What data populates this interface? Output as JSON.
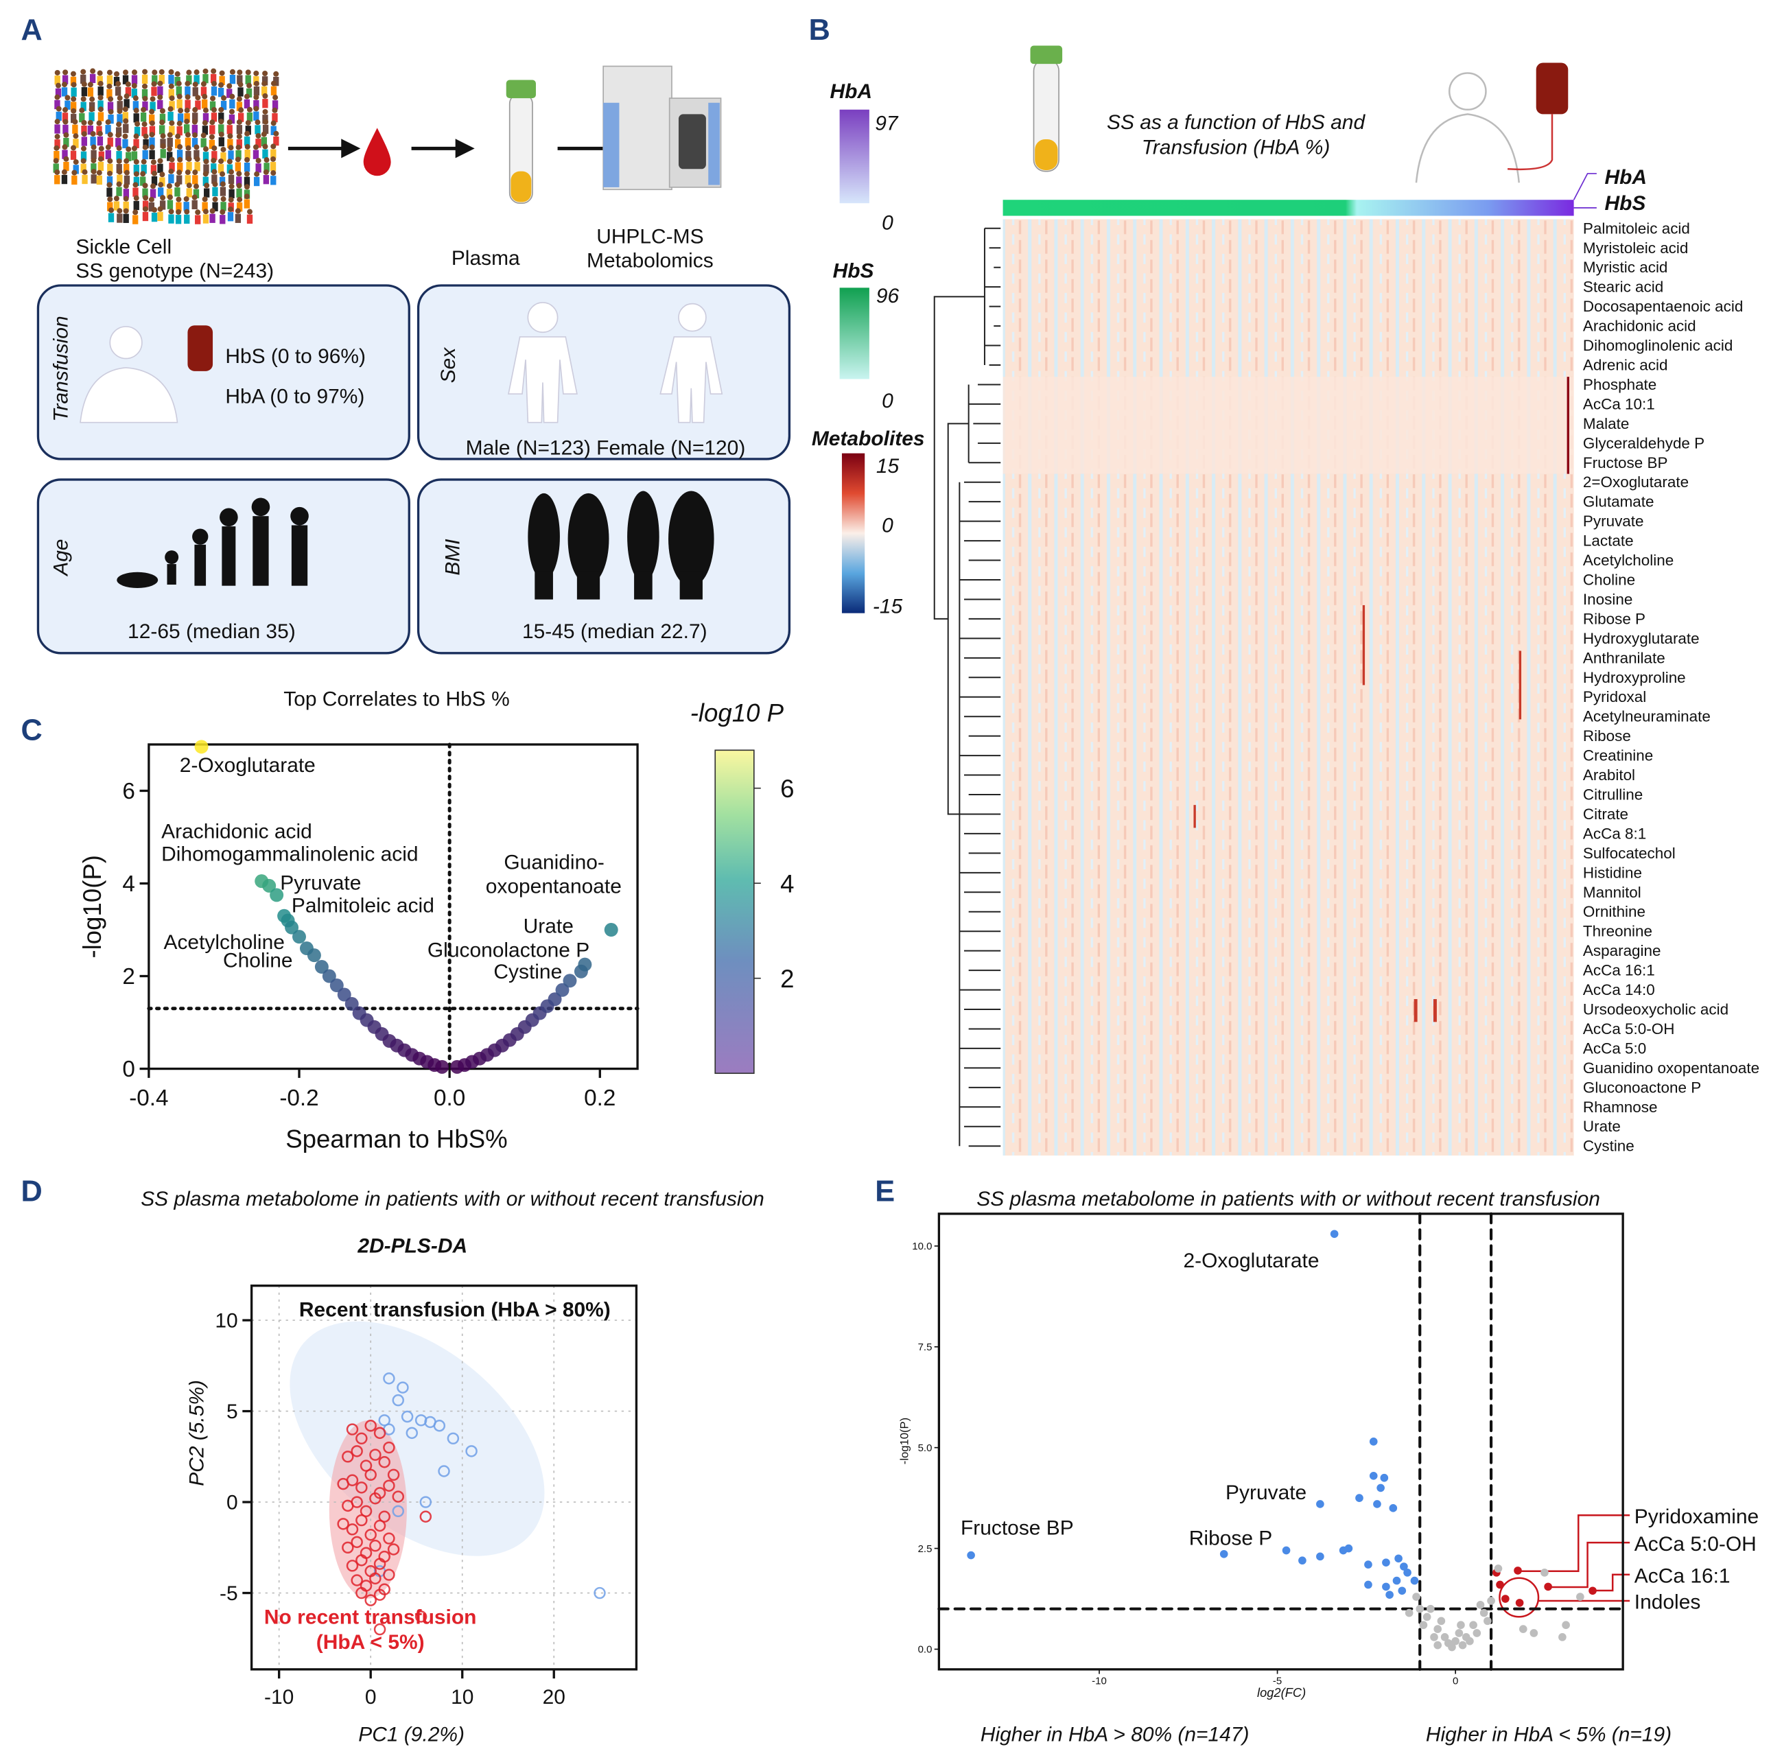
{
  "panel_labels": [
    "A",
    "B",
    "C",
    "D",
    "E"
  ],
  "panel_a": {
    "cohort": [
      "Sickle Cell",
      "SS genotype (N=243)"
    ],
    "plasma": "Plasma",
    "ms": [
      "UHPLC-MS",
      "Metabolomics"
    ],
    "boxes": [
      {
        "title": "Transfusion",
        "lines": [
          "HbS (0 to 96%)",
          "HbA (0 to 97%)"
        ]
      },
      {
        "title": "Sex",
        "lines": [
          "Male (N=123) Female (N=120)"
        ]
      },
      {
        "title": "Age",
        "lines": [
          "12-65 (median 35)"
        ]
      },
      {
        "title": "BMI",
        "lines": [
          "15-45 (median 22.7)"
        ]
      }
    ]
  },
  "panel_b": {
    "title": [
      "SS as a function of HbS and",
      "Transfusion (HbA %)"
    ],
    "bar_labels": [
      "HbA",
      "HbS"
    ],
    "colorbars": [
      {
        "title": "HbA",
        "ticks": [
          97,
          0
        ]
      },
      {
        "title": "HbS",
        "ticks": [
          96,
          0
        ]
      },
      {
        "title": "Metabolites",
        "ticks": [
          15,
          0,
          -15
        ]
      }
    ],
    "rows": [
      "Palmitoleic acid",
      "Myristoleic acid",
      "Myristic acid",
      "Stearic acid",
      "Docosapentaenoic acid",
      "Arachidonic acid",
      "Dihomoglinolenic acid",
      "Adrenic acid",
      "Phosphate",
      "AcCa 10:1",
      "Malate",
      "Glyceraldehyde P",
      "Fructose BP",
      "2=Oxoglutarate",
      "Glutamate",
      "Pyruvate",
      "Lactate",
      "Acetylcholine",
      "Choline",
      "Inosine",
      "Ribose P",
      "Hydroxyglutarate",
      "Anthranilate",
      "Hydroxyproline",
      "Pyridoxal",
      "Acetylneuraminate",
      "Ribose",
      "Creatinine",
      "Arabitol",
      "Citrulline",
      "Citrate",
      "AcCa 8:1",
      "Sulfocatechol",
      "Histidine",
      "Mannitol",
      "Ornithine",
      "Threonine",
      "Asparagine",
      "AcCa 16:1",
      "AcCa 14:0",
      "Ursodeoxycholic acid",
      "AcCa 5:0-OH",
      "AcCa 5:0",
      "Guanidino oxopentanoate",
      "Gluconoactone P",
      "Rhamnose",
      "Urate",
      "Cystine"
    ]
  },
  "chart_data": [
    {
      "type": "scatter",
      "title": "Top Correlates to HbS %",
      "x_label": "Spearman to HbS%",
      "y_label": "-log10(P)",
      "x": [
        -0.33,
        -0.25,
        -0.24,
        -0.23,
        -0.22,
        -0.215,
        -0.21,
        -0.2,
        -0.19,
        -0.18,
        -0.17,
        -0.16,
        -0.15,
        -0.14,
        -0.13,
        -0.12,
        -0.11,
        -0.1,
        -0.09,
        -0.08,
        -0.07,
        -0.06,
        -0.05,
        -0.04,
        -0.03,
        -0.02,
        -0.01,
        0.01,
        0.02,
        0.03,
        0.04,
        0.05,
        0.06,
        0.07,
        0.08,
        0.09,
        0.1,
        0.11,
        0.12,
        0.13,
        0.14,
        0.15,
        0.16,
        0.175,
        0.18,
        0.215
      ],
      "y": [
        6.95,
        4.05,
        3.95,
        3.75,
        3.3,
        3.2,
        3.05,
        2.85,
        2.6,
        2.45,
        2.2,
        2,
        1.8,
        1.6,
        1.4,
        1.2,
        1.05,
        0.9,
        0.75,
        0.6,
        0.5,
        0.4,
        0.3,
        0.22,
        0.15,
        0.08,
        0.04,
        0.04,
        0.08,
        0.15,
        0.22,
        0.3,
        0.4,
        0.5,
        0.62,
        0.75,
        0.9,
        1.05,
        1.2,
        1.35,
        1.5,
        1.7,
        1.9,
        2.1,
        2.25,
        3
      ],
      "xlim": [
        -0.4,
        0.25
      ],
      "ylim": [
        0,
        7
      ],
      "xticks": [
        -0.4,
        -0.2,
        {
          "value": 0,
          "label": "0.0"
        },
        0.2
      ],
      "yticks": [
        0,
        2,
        4,
        6
      ],
      "thresholds": {
        "x": 0,
        "y": 1.3
      },
      "threshold_style": "dotted",
      "marker": "filled",
      "colorbar": {
        "title": "-log10 P",
        "lim": [
          0,
          6.8
        ],
        "ticks": [
          6,
          4,
          2
        ],
        "colors": [
          "#440154",
          "#3b528b",
          "#21918c",
          "#5ec962",
          "#fde725"
        ]
      },
      "annotations": [
        "2-Oxoglutarate",
        "Arachidonic acid",
        "Dihomogammalinolenic acid",
        "Pyruvate",
        "Palmitoleic acid",
        "Acetylcholine",
        "Choline",
        "Guanidino-",
        "oxopentanoate",
        "Urate",
        "Gluconolactone P",
        "Cystine"
      ]
    },
    {
      "type": "scatter",
      "title": "SS plasma metabolome in patients with or without recent transfusion",
      "subtitle": "2D-PLS-DA",
      "x_label": "PC1 (9.2%)",
      "y_label": "PC2 (5.5%)",
      "xlim": [
        -13,
        29
      ],
      "ylim": [
        -9.2,
        11.9
      ],
      "xticks": [
        -10,
        0,
        10,
        20
      ],
      "yticks": [
        10,
        5,
        0,
        -5
      ],
      "grid": true,
      "marker": "open",
      "series": [
        {
          "name": "Recent transfusion (HbA > 80%)",
          "color": "#6f9fe6",
          "x": [
            2,
            3,
            3.5,
            1.5,
            4,
            5.5,
            6.5,
            7.5,
            4.5,
            9,
            11,
            8,
            6,
            3,
            25,
            1,
            2
          ],
          "y": [
            6.8,
            5.6,
            6.3,
            4.5,
            4.7,
            4.5,
            4.4,
            4.2,
            3.8,
            3.5,
            2.8,
            1.7,
            0,
            -0.5,
            -5,
            -3.8,
            4
          ]
        },
        {
          "name": "No recent transfusion (HbA < 5%)",
          "color": "#e0222a",
          "x": [
            -2,
            -1,
            0,
            1,
            2,
            -2.5,
            -1.5,
            -0.5,
            0.5,
            1.5,
            2.5,
            -3,
            -2,
            -1,
            0,
            1,
            2,
            3,
            -2.5,
            -1.5,
            -0.5,
            0.5,
            1.5,
            -3,
            -2,
            -1,
            0,
            1,
            2,
            -2.5,
            -1.5,
            -0.5,
            0.5,
            1.5,
            2.5,
            -2,
            -1,
            0,
            1,
            2,
            -1.5,
            -0.5,
            0.5,
            1.5,
            -1,
            0,
            1,
            6,
            5.5,
            1
          ],
          "y": [
            4,
            3.5,
            4.2,
            3.8,
            3,
            2.5,
            2.8,
            2,
            2.6,
            2.2,
            1.5,
            1,
            1.2,
            0.8,
            1.5,
            0.5,
            0.9,
            0.3,
            -0.2,
            0,
            -0.5,
            0.2,
            -0.8,
            -1.2,
            -1.5,
            -1,
            -1.8,
            -1.3,
            -2,
            -2.5,
            -2.2,
            -2.8,
            -2.4,
            -3,
            -2.6,
            -3.5,
            -3.2,
            -3.8,
            -3.4,
            -4,
            -4.3,
            -4.6,
            -4.2,
            -4.8,
            -5,
            -5.4,
            -5.1,
            -0.8,
            -6.3,
            -7
          ]
        }
      ]
    },
    {
      "type": "scatter",
      "title": "SS plasma metabolome in patients with or without recent transfusion",
      "x_label": "log2(FC)",
      "y_label": "-log10(P)",
      "xlim": [
        -14.5,
        4.7
      ],
      "ylim": [
        -0.5,
        10.8
      ],
      "xticks": [
        -10,
        -5,
        0
      ],
      "yticks": [
        {
          "value": 0,
          "label": "0.0"
        },
        2.5,
        {
          "value": 5,
          "label": "5.0"
        },
        7.5,
        {
          "value": 10,
          "label": "10.0"
        }
      ],
      "thresholds": {
        "x": [
          -1,
          1
        ],
        "y": 1
      },
      "threshold_style": "dashed",
      "marker": "filled",
      "series": [
        {
          "name": "Higher in HbA > 80% (n=147)",
          "color": "#4a8ae6",
          "x": [
            -3.4,
            -13.6,
            -3.8,
            -6.5,
            -4.75,
            -4.3,
            -3.8,
            -3.15,
            -3,
            -2.3,
            -2.3,
            -2,
            -2.1,
            -2.7,
            -2.2,
            -1.75,
            -2.45,
            -1.95,
            -1.6,
            -1.45,
            -2.45,
            -1.95,
            -1.65,
            -1.35,
            -1.85,
            -1.5,
            -1.15
          ],
          "y": [
            10.3,
            2.33,
            3.6,
            2.36,
            2.45,
            2.2,
            2.3,
            2.45,
            2.5,
            5.15,
            4.3,
            4.25,
            4,
            3.75,
            3.6,
            3.5,
            2.1,
            2.15,
            2.25,
            2.05,
            1.6,
            1.55,
            1.7,
            1.9,
            1.35,
            1.45,
            1.7
          ]
        },
        {
          "name": "Higher in HbA < 5% (n=19)",
          "color": "#c8161d",
          "x": [
            1.75,
            1.25,
            2.6,
            3.85,
            1.4,
            1.8,
            1.15
          ],
          "y": [
            1.95,
            1.6,
            1.55,
            1.45,
            1.25,
            1.15,
            1.9
          ]
        },
        {
          "color": "#bdbdbd",
          "x": [
            -1,
            -0.8,
            -0.5,
            -0.3,
            0,
            0.3,
            0.5,
            0.8,
            1,
            -0.9,
            -0.6,
            -0.2,
            0.2,
            0.6,
            0.9,
            -1.1,
            -0.7,
            -0.4,
            0.1,
            0.4,
            0.7,
            2.2,
            3,
            3.1,
            2.5,
            1.9,
            -1.3,
            -0.1,
            0.15,
            -0.5,
            3.5,
            1.2
          ],
          "y": [
            1.0,
            0.8,
            0.5,
            0.3,
            0.2,
            0.3,
            0.6,
            0.9,
            1.2,
            0.6,
            0.3,
            0.15,
            0.1,
            0.4,
            0.7,
            1.3,
            1.0,
            0.7,
            0.4,
            0.2,
            1.1,
            0.4,
            0.3,
            0.6,
            1.9,
            0.5,
            0.9,
            0.05,
            0.6,
            0.1,
            1.3,
            2.0
          ]
        }
      ],
      "annotations": [
        "2-Oxoglutarate",
        "Fructose BP",
        "Pyruvate",
        "Ribose P",
        "Pyridoxamine",
        "AcCa 5:0-OH",
        "AcCa 16:1",
        "Indoles"
      ]
    }
  ]
}
